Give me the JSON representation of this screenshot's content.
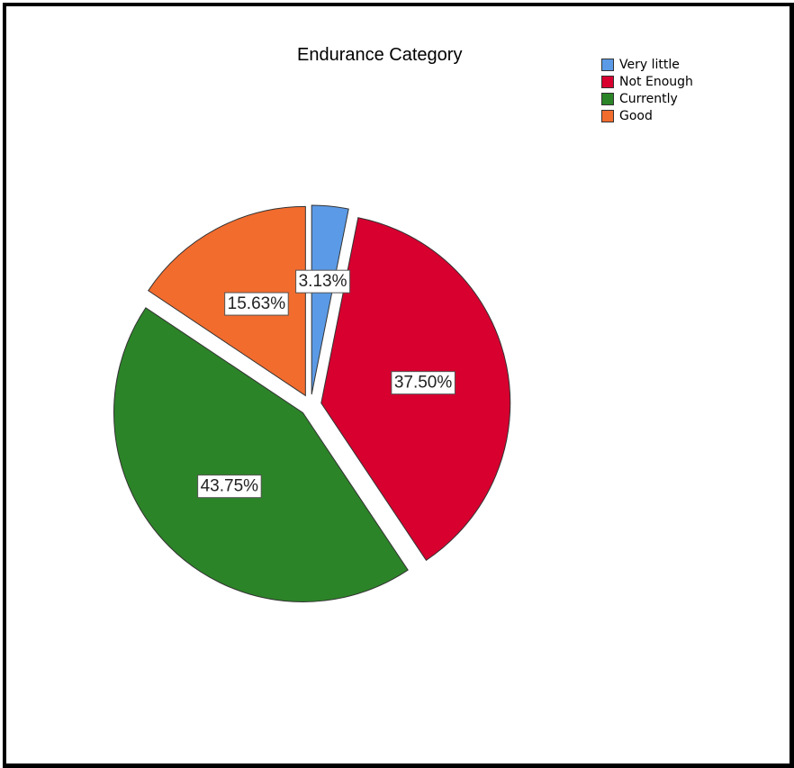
{
  "chart_data": {
    "type": "pie",
    "title": "Endurance Category",
    "legend_position": "top-right",
    "exploded": true,
    "slices": [
      {
        "label": "Very little",
        "value": 3.13,
        "display": "3.13%",
        "color": "#5b9ae6"
      },
      {
        "label": "Not Enough",
        "value": 37.5,
        "display": "37.50%",
        "color": "#d7002f"
      },
      {
        "label": "Currently",
        "value": 43.75,
        "display": "43.75%",
        "color": "#2c8428"
      },
      {
        "label": "Good",
        "value": 15.63,
        "display": "15.63%",
        "color": "#f26c2e"
      }
    ]
  }
}
